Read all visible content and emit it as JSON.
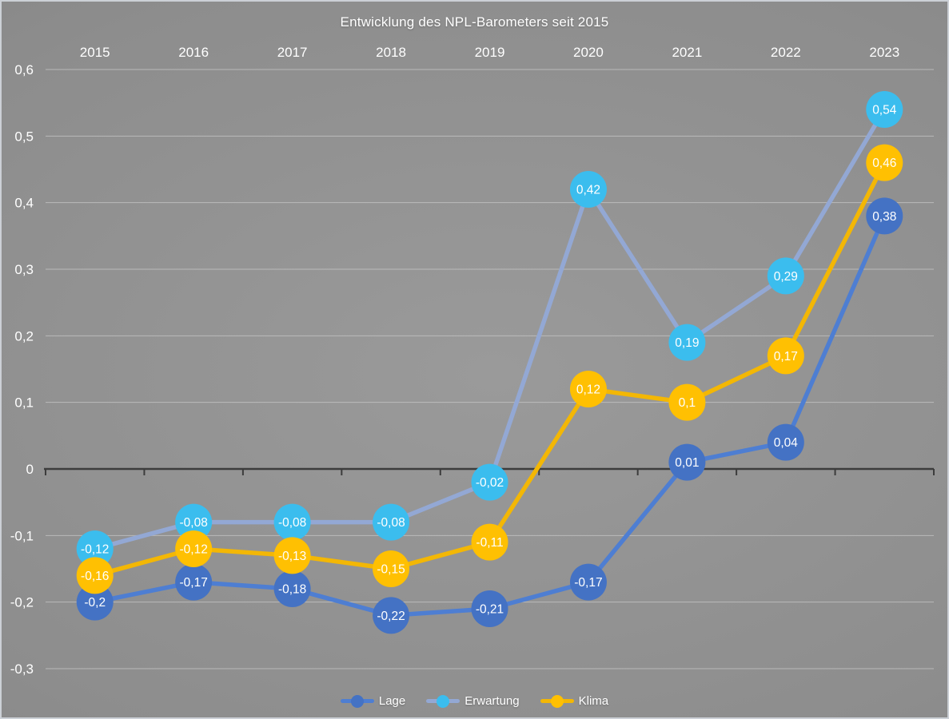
{
  "title": "Entwicklung des NPL-Barometers seit 2015",
  "axis": {
    "zero_line_color": "#3c3c3c",
    "gridline_color": "#c4c4c4",
    "text_color": "#ffffff"
  },
  "chart_data": {
    "type": "line",
    "title": "Entwicklung des NPL-Barometers seit 2015",
    "categories": [
      "2015",
      "2016",
      "2017",
      "2018",
      "2019",
      "2020",
      "2021",
      "2022",
      "2023"
    ],
    "series": [
      {
        "name": "Lage",
        "values": [
          -0.2,
          -0.17,
          -0.18,
          -0.22,
          -0.21,
          -0.17,
          0.01,
          0.04,
          0.38
        ],
        "labels": [
          "-0,2",
          "-0,17",
          "-0,18",
          "-0,22",
          "-0,21",
          "-0,17",
          "0,01",
          "0,04",
          "0,38"
        ],
        "line_color": "#4e7ed2",
        "marker_color": "#4472c4"
      },
      {
        "name": "Erwartung",
        "values": [
          -0.12,
          -0.08,
          -0.08,
          -0.08,
          -0.02,
          0.42,
          0.19,
          0.29,
          0.54
        ],
        "labels": [
          "-0,12",
          "-0,08",
          "-0,08",
          "-0,08",
          "-0,02",
          "0,42",
          "0,19",
          "0,29",
          "0,54"
        ],
        "line_color": "#93a8d4",
        "marker_color": "#3bbdee"
      },
      {
        "name": "Klima",
        "values": [
          -0.16,
          -0.12,
          -0.13,
          -0.15,
          -0.11,
          0.12,
          0.1,
          0.17,
          0.46
        ],
        "labels": [
          "-0,16",
          "-0,12",
          "-0,13",
          "-0,15",
          "-0,11",
          "0,12",
          "0,1",
          "0,17",
          "0,46"
        ],
        "line_color": "#f3b705",
        "marker_color": "#ffc002"
      }
    ],
    "y_ticks": [
      {
        "label": "0,6",
        "value": 0.6
      },
      {
        "label": "0,5",
        "value": 0.5
      },
      {
        "label": "0,4",
        "value": 0.4
      },
      {
        "label": "0,3",
        "value": 0.3
      },
      {
        "label": "0,2",
        "value": 0.2
      },
      {
        "label": "0,1",
        "value": 0.1
      },
      {
        "label": "0",
        "value": 0
      },
      {
        "label": "-0,1",
        "value": -0.1
      },
      {
        "label": "-0,2",
        "value": -0.2
      },
      {
        "label": "-0,3",
        "value": -0.3
      }
    ],
    "ylim": [
      -0.3,
      0.6
    ],
    "grid": true,
    "legend_position": "bottom",
    "data_labels": "inside markers, white"
  }
}
